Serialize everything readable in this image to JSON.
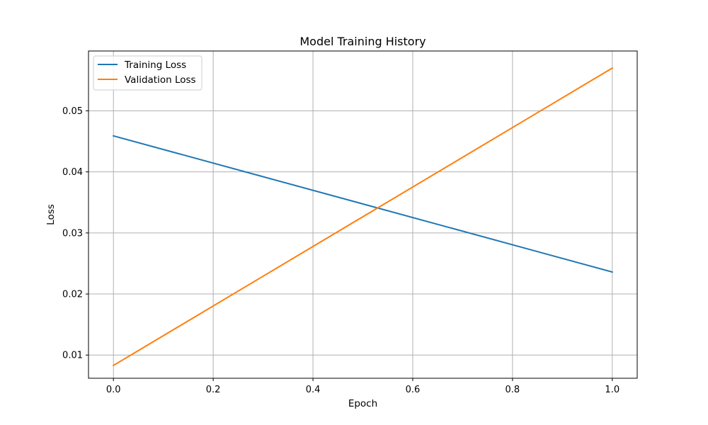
{
  "chart_data": {
    "type": "line",
    "title": "Model Training History",
    "xlabel": "Epoch",
    "ylabel": "Loss",
    "xlim": [
      -0.05,
      1.05
    ],
    "ylim": [
      0.0062,
      0.0598
    ],
    "x_ticks": [
      0.0,
      0.2,
      0.4,
      0.6,
      0.8,
      1.0
    ],
    "y_ticks": [
      0.01,
      0.02,
      0.03,
      0.04,
      0.05
    ],
    "x_tick_labels": [
      "0.0",
      "0.2",
      "0.4",
      "0.6",
      "0.8",
      "1.0"
    ],
    "y_tick_labels": [
      "0.01",
      "0.02",
      "0.03",
      "0.04",
      "0.05"
    ],
    "grid": true,
    "legend_position": "top-left",
    "x": [
      0,
      1
    ],
    "series": [
      {
        "name": "Training Loss",
        "values": [
          0.0459,
          0.0236
        ],
        "color": "#1f77b4"
      },
      {
        "name": "Validation Loss",
        "values": [
          0.0083,
          0.057
        ],
        "color": "#ff7f0e"
      }
    ]
  }
}
